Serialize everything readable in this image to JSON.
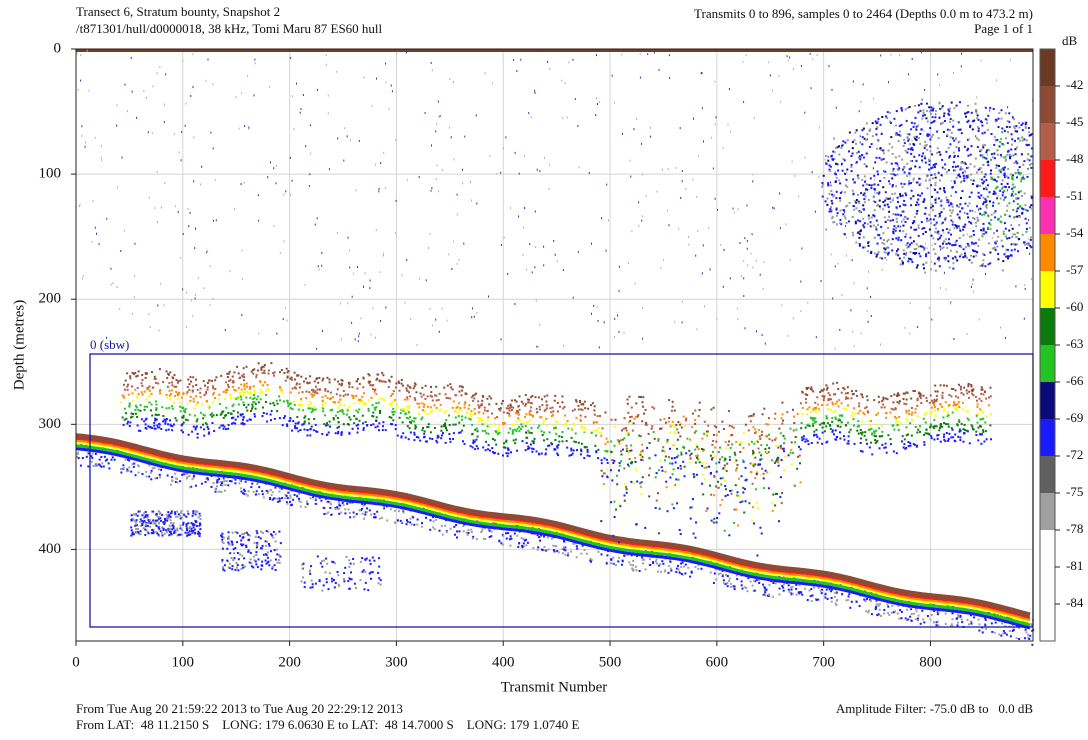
{
  "chart_data": {
    "type": "echogram",
    "title": "Transect 6, Stratum bounty, Snapshot 2",
    "subtitle": "/t871301/hull/d0000018, 38 kHz, Tomi Maru 87 ES60 hull",
    "info": [
      "Transmits 0 to 896, samples 0 to 2464 (Depths 0.0 m to 473.2 m)",
      "Page 1 of 1"
    ],
    "footer": [
      "From Tue Aug 20 21:59:22 2013 to Tue Aug 20 22:29:12 2013",
      "From LAT:  48 11.2150 S    LONG: 179 6.0630 E to LAT:  48 14.7000 S    LONG: 179 1.0740 E"
    ],
    "filter": "Amplitude Filter: -75.0 dB to   0.0 dB",
    "xlabel": "Transmit Number",
    "ylabel": "Depth (metres)",
    "xlim": [
      0,
      896
    ],
    "ylim": [
      0,
      473.2
    ],
    "xticks": [
      0,
      100,
      200,
      300,
      400,
      500,
      600,
      700,
      800
    ],
    "yticks": [
      0,
      100,
      200,
      300,
      400
    ],
    "grid": true,
    "region_label": "0 (sbw)",
    "colorbar": {
      "label": "dB",
      "clim": [
        -87,
        -39
      ],
      "ticks": [
        -42,
        -45,
        -48,
        -51,
        -54,
        -57,
        -60,
        -63,
        -66,
        -69,
        -72,
        -75,
        -78,
        -81,
        -84
      ],
      "colors": [
        "#6b3a22",
        "#8e4a34",
        "#b35e4a",
        "#ff1a1a",
        "#ff2fb4",
        "#ff8a00",
        "#ffff00",
        "#0a7a0a",
        "#22c422",
        "#0a0a7a",
        "#1a1aff",
        "#606060",
        "#a0a0a0",
        "#ffffff",
        "#ffffff",
        "#ffffff"
      ]
    }
  }
}
